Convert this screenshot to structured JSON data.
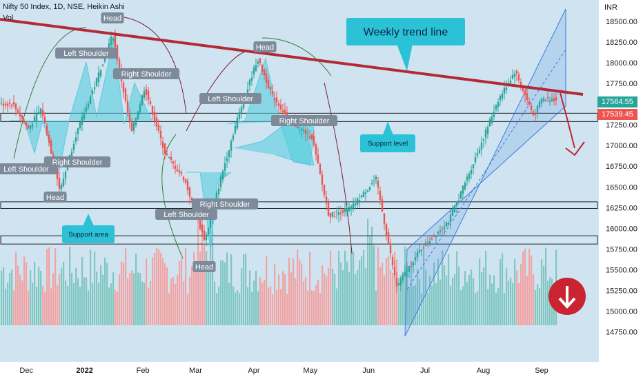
{
  "header": {
    "symbol_line": "Nifty 50 Index, 1D, NSE, Heikin Ashi",
    "volume_label": "Vol",
    "currency": "INR"
  },
  "price_tags": {
    "last": "17564.55",
    "prev": "17539.45"
  },
  "colors": {
    "background": "#cfe3f1",
    "up": "#26a69a",
    "down": "#ef5350",
    "vol_up": "#7fc7c0",
    "vol_down": "#f2a3a2",
    "trendline": "#b22a36",
    "pattern": "#5cc9db",
    "channel": "#3d7bd9",
    "callout": "#2bc1d6",
    "label_bg": "#7d8a99"
  },
  "chart_data": {
    "type": "candlestick",
    "title": "Nifty 50 Index, 1D, NSE, Heikin Ashi",
    "ylabel": "INR",
    "ylim": [
      14650,
      18700
    ],
    "y_ticks": [
      "18500.00",
      "18250.00",
      "18000.00",
      "17750.00",
      "17500.00",
      "17250.00",
      "17000.00",
      "16750.00",
      "16500.00",
      "16250.00",
      "16000.00",
      "15750.00",
      "15500.00",
      "15250.00",
      "15000.00",
      "14750.00"
    ],
    "x_ticks": [
      "Dec",
      "2022",
      "Feb",
      "Mar",
      "Apr",
      "May",
      "Jun",
      "Jul",
      "Aug",
      "Sep"
    ],
    "price_path": [
      {
        "d": "2021-11-25",
        "v": 17500
      },
      {
        "d": "2021-12-03",
        "v": 17200
      },
      {
        "d": "2021-12-10",
        "v": 17450
      },
      {
        "d": "2021-12-20",
        "v": 16450
      },
      {
        "d": "2021-12-28",
        "v": 17100
      },
      {
        "d": "2022-01-07",
        "v": 17700
      },
      {
        "d": "2022-01-17",
        "v": 18350
      },
      {
        "d": "2022-01-27",
        "v": 17150
      },
      {
        "d": "2022-02-03",
        "v": 17700
      },
      {
        "d": "2022-02-14",
        "v": 16900
      },
      {
        "d": "2022-02-24",
        "v": 16600
      },
      {
        "d": "2022-03-07",
        "v": 15850
      },
      {
        "d": "2022-03-16",
        "v": 16650
      },
      {
        "d": "2022-03-24",
        "v": 17300
      },
      {
        "d": "2022-04-04",
        "v": 18050
      },
      {
        "d": "2022-04-12",
        "v": 17600
      },
      {
        "d": "2022-04-21",
        "v": 17300
      },
      {
        "d": "2022-05-03",
        "v": 17100
      },
      {
        "d": "2022-05-12",
        "v": 16150
      },
      {
        "d": "2022-05-24",
        "v": 16250
      },
      {
        "d": "2022-06-06",
        "v": 16600
      },
      {
        "d": "2022-06-17",
        "v": 15300
      },
      {
        "d": "2022-06-30",
        "v": 15750
      },
      {
        "d": "2022-07-15",
        "v": 16100
      },
      {
        "d": "2022-07-28",
        "v": 16800
      },
      {
        "d": "2022-08-10",
        "v": 17550
      },
      {
        "d": "2022-08-19",
        "v": 17900
      },
      {
        "d": "2022-08-29",
        "v": 17350
      },
      {
        "d": "2022-09-02",
        "v": 17560
      }
    ],
    "horizontal_levels": [
      {
        "name": "support-level",
        "low": 17290,
        "high": 17390
      },
      {
        "name": "support-area-1",
        "low": 16240,
        "high": 16320
      },
      {
        "name": "support-area-2",
        "low": 15810,
        "high": 15910
      }
    ],
    "annotations": {
      "callout": "Weekly trend line",
      "support_level": "Support level",
      "support_area": "Support area",
      "hs1": [
        "Left Shoulder",
        "Head",
        "Right Shoulder"
      ],
      "hs2": [
        "Left Shoulder",
        "Head",
        "Right Shoulder"
      ],
      "hs3": [
        "Left Shoulder",
        "Head",
        "Right Shoulder"
      ],
      "hs4": [
        "Left Shoulder",
        "Head",
        "Right Shoulder"
      ]
    }
  }
}
